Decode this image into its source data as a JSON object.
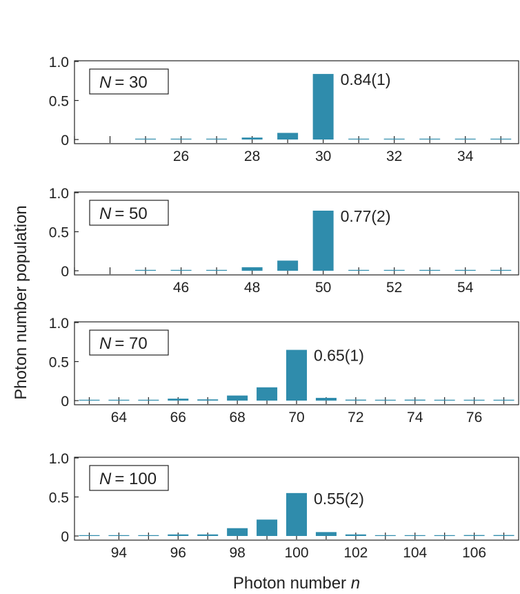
{
  "chart_data": {
    "type": "bar",
    "ylabel": "Photon number population",
    "xlabel_prefix": "Photon number ",
    "xlabel_var": "n",
    "bar_color": "#2f8cac",
    "ylim": [
      0,
      1.0
    ],
    "yticks": [
      "0",
      "0.5",
      "1.0"
    ],
    "panels": [
      {
        "label_var": "N",
        "label_value": "= 30",
        "peak_label": "0.84(1)",
        "xlim": [
          23,
          35.5
        ],
        "xticks": [
          26,
          28,
          30,
          32,
          34
        ],
        "x": [
          25,
          26,
          27,
          28,
          29,
          30,
          31,
          32,
          33,
          34,
          35
        ],
        "values": [
          0.004,
          0.008,
          0.005,
          0.025,
          0.085,
          0.84,
          0.006,
          0.004,
          0.003,
          0.008,
          0.003
        ]
      },
      {
        "label_var": "N",
        "label_value": "= 50",
        "peak_label": "0.77(2)",
        "xlim": [
          43,
          55.5
        ],
        "xticks": [
          46,
          48,
          50,
          52,
          54
        ],
        "x": [
          45,
          46,
          47,
          48,
          49,
          50,
          51,
          52,
          53,
          54,
          55
        ],
        "values": [
          0.004,
          0.01,
          0.008,
          0.045,
          0.13,
          0.77,
          0.008,
          0.005,
          0.003,
          0.008,
          0.003
        ]
      },
      {
        "label_var": "N",
        "label_value": "= 70",
        "peak_label": "0.65(1)",
        "xlim": [
          62.5,
          77.5
        ],
        "xticks": [
          64,
          66,
          68,
          70,
          72,
          74,
          76
        ],
        "x": [
          63,
          64,
          65,
          66,
          67,
          68,
          69,
          70,
          71,
          72,
          73,
          74,
          75,
          76,
          77
        ],
        "values": [
          0.004,
          0.002,
          0.004,
          0.025,
          0.015,
          0.065,
          0.17,
          0.65,
          0.035,
          0.012,
          0.006,
          0.012,
          0.004,
          0.006,
          0.006
        ]
      },
      {
        "label_var": "N",
        "label_value": "= 100",
        "peak_label": "0.55(2)",
        "xlim": [
          92.5,
          107.5
        ],
        "xticks": [
          94,
          96,
          98,
          100,
          102,
          104,
          106
        ],
        "x": [
          93,
          94,
          95,
          96,
          97,
          98,
          99,
          100,
          101,
          102,
          103,
          104,
          105,
          106,
          107
        ],
        "values": [
          0.003,
          0.003,
          0.005,
          0.02,
          0.02,
          0.1,
          0.21,
          0.55,
          0.05,
          0.02,
          0.005,
          0.008,
          0.004,
          0.012,
          0.012
        ]
      }
    ]
  }
}
